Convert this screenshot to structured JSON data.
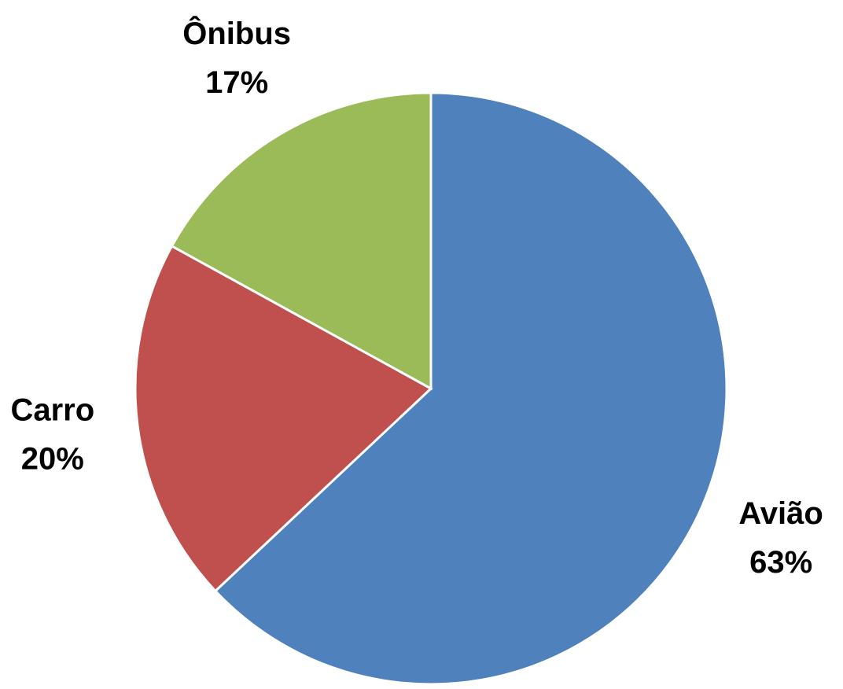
{
  "chart_data": {
    "type": "pie",
    "categories": [
      "Avião",
      "Carro",
      "Ônibus"
    ],
    "values": [
      63,
      20,
      17
    ],
    "value_labels": [
      "63%",
      "20%",
      "17%"
    ],
    "colors": [
      "#4f81bd",
      "#c0504d",
      "#9bbb59"
    ]
  }
}
